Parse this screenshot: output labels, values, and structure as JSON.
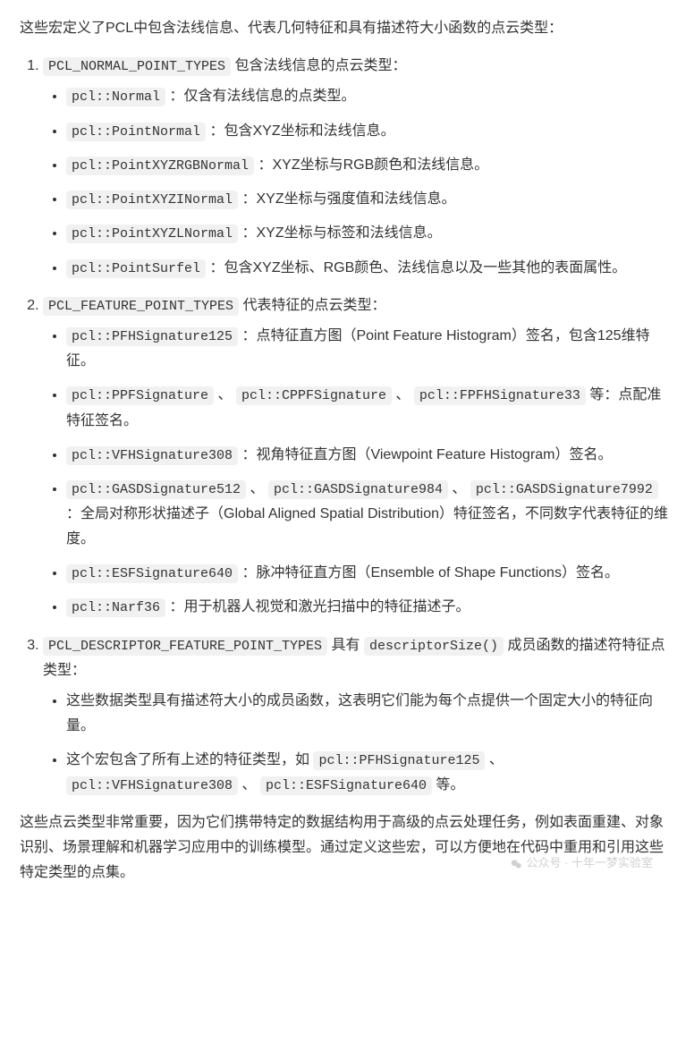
{
  "intro": "这些宏定义了PCL中包含法线信息、代表几何特征和具有描述符大小函数的点云类型：",
  "sections": [
    {
      "macro": "PCL_NORMAL_POINT_TYPES",
      "tail": " 包含法线信息的点云类型：",
      "items": [
        {
          "codes": [
            "pcl::Normal"
          ],
          "text": " ：仅含有法线信息的点类型。"
        },
        {
          "codes": [
            "pcl::PointNormal"
          ],
          "text": " ：包含XYZ坐标和法线信息。"
        },
        {
          "codes": [
            "pcl::PointXYZRGBNormal"
          ],
          "text": " ：XYZ坐标与RGB颜色和法线信息。"
        },
        {
          "codes": [
            "pcl::PointXYZINormal"
          ],
          "text": " ：XYZ坐标与强度值和法线信息。"
        },
        {
          "codes": [
            "pcl::PointXYZLNormal"
          ],
          "text": " ：XYZ坐标与标签和法线信息。"
        },
        {
          "codes": [
            "pcl::PointSurfel"
          ],
          "text": " ：包含XYZ坐标、RGB颜色、法线信息以及一些其他的表面属性。"
        }
      ]
    },
    {
      "macro": "PCL_FEATURE_POINT_TYPES",
      "tail": " 代表特征的点云类型：",
      "items": [
        {
          "codes": [
            "pcl::PFHSignature125"
          ],
          "text": " ：点特征直方图（Point Feature Histogram）签名，包含125维特征。"
        },
        {
          "codes": [
            "pcl::PPFSignature",
            "pcl::CPPFSignature",
            "pcl::FPFHSignature33"
          ],
          "join": " 、 ",
          "text": " 等：点配准特征签名。"
        },
        {
          "codes": [
            "pcl::VFHSignature308"
          ],
          "text": " ：视角特征直方图（Viewpoint Feature Histogram）签名。"
        },
        {
          "codes": [
            "pcl::GASDSignature512",
            "pcl::GASDSignature984",
            "pcl::GASDSignature7992"
          ],
          "join": " 、 ",
          "text": " ：全局对称形状描述子（Global Aligned Spatial Distribution）特征签名，不同数字代表特征的维度。"
        },
        {
          "codes": [
            "pcl::ESFSignature640"
          ],
          "text": " ：脉冲特征直方图（Ensemble of Shape Functions）签名。"
        },
        {
          "codes": [
            "pcl::Narf36"
          ],
          "text": " ：用于机器人视觉和激光扫描中的特征描述子。"
        }
      ]
    },
    {
      "macro": "PCL_DESCRIPTOR_FEATURE_POINT_TYPES",
      "extra_code": "descriptorSize()",
      "tail_before": " 具有 ",
      "tail_after": " 成员函数的描述符特征点类型：",
      "items": [
        {
          "codes": [],
          "text": "这些数据类型具有描述符大小的成员函数，这表明它们能为每个点提供一个固定大小的特征向量。"
        },
        {
          "prefix": "这个宏包含了所有上述的特征类型，如 ",
          "codes": [
            "pcl::PFHSignature125",
            "pcl::VFHSignature308",
            "pcl::ESFSignature640"
          ],
          "join": " 、 ",
          "text": " 等。"
        }
      ]
    }
  ],
  "outro": "这些点云类型非常重要，因为它们携带特定的数据结构用于高级的点云处理任务，例如表面重建、对象识别、场景理解和机器学习应用中的训练模型。通过定义这些宏，可以方便地在代码中重用和引用这些特定类型的点集。",
  "watermark": "公众号 · 十年一梦实验室"
}
